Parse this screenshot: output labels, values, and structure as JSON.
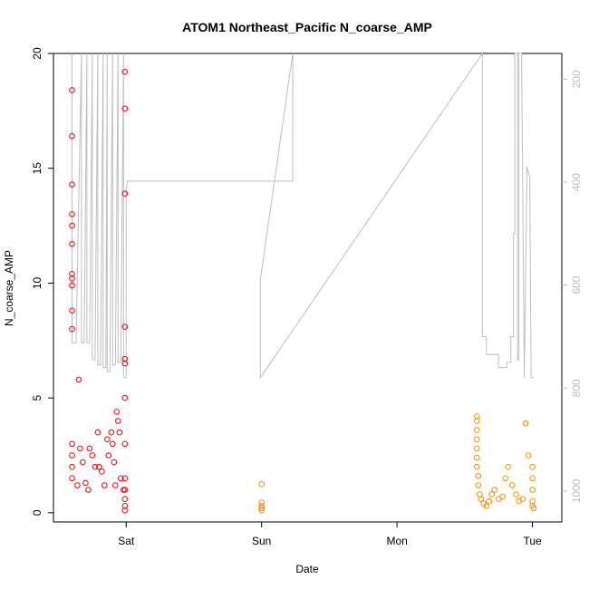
{
  "chart_data": {
    "type": "scatter",
    "title": "ATOM1 Northeast_Pacific N_coarse_AMP",
    "xlabel": "Date",
    "ylabel": "N_coarse_AMP",
    "x_ticks": [
      "Sat",
      "Sun",
      "Mon",
      "Tue"
    ],
    "x_range_days": [
      -0.45,
      3.13
    ],
    "ylim": [
      -0.4,
      20.0
    ],
    "y_ticks": [
      0,
      5,
      10,
      15,
      20
    ],
    "y2_ticks": [
      200,
      400,
      600,
      800,
      1000
    ],
    "y2lim": [
      1060,
      150
    ],
    "y2_inverted": true,
    "grid": false,
    "colors": {
      "series1": "#ff0000",
      "series2": "#ff8c00",
      "secondary_line": "#bebebe"
    },
    "series": [
      {
        "x": [
          -0.4,
          -0.4,
          -0.4,
          -0.4,
          -0.4,
          -0.4,
          -0.4,
          -0.4,
          -0.4,
          -0.4,
          -0.4,
          -0.4,
          -0.4,
          -0.4,
          -0.4,
          -0.36,
          -0.35,
          -0.34,
          -0.32,
          -0.3,
          -0.28,
          -0.27,
          -0.25,
          -0.23,
          -0.21,
          -0.2,
          -0.18,
          -0.16,
          -0.14,
          -0.13,
          -0.11,
          -0.1,
          -0.09,
          -0.08,
          -0.07,
          -0.06,
          -0.05,
          -0.04,
          -0.02,
          -0.01,
          -0.01,
          -0.01,
          -0.01,
          -0.01,
          -0.01,
          -0.01,
          -0.01,
          -0.01,
          -0.01,
          -0.01,
          -0.01,
          -0.01
        ],
        "y": [
          18.4,
          16.4,
          14.3,
          13.0,
          12.5,
          11.7,
          10.4,
          10.2,
          9.9,
          8.8,
          8.0,
          3.0,
          2.5,
          2.0,
          1.5,
          1.2,
          5.8,
          2.8,
          2.2,
          1.3,
          1.0,
          2.8,
          2.5,
          2.0,
          3.5,
          2.0,
          1.8,
          1.2,
          3.2,
          2.5,
          3.5,
          3.0,
          2.2,
          1.2,
          4.4,
          4.0,
          3.5,
          1.5,
          1.0,
          19.2,
          17.6,
          13.9,
          8.1,
          6.7,
          6.5,
          5.0,
          3.0,
          1.5,
          1.0,
          0.6,
          0.3,
          0.1
        ]
      },
      {
        "x": [
          1.0,
          1.0,
          1.0,
          1.0,
          1.0,
          2.59,
          2.59,
          2.59,
          2.59,
          2.59,
          2.59,
          2.59,
          2.6,
          2.6,
          2.61,
          2.62,
          2.64,
          2.66,
          2.68,
          2.7,
          2.72,
          2.75,
          2.78,
          2.8,
          2.82,
          2.85,
          2.88,
          2.9,
          2.93,
          2.95,
          2.97,
          3.0,
          3.0,
          3.0,
          3.0,
          3.0,
          3.01
        ],
        "y": [
          1.25,
          0.45,
          0.3,
          0.2,
          0.1,
          4.2,
          4.0,
          3.6,
          3.2,
          2.8,
          2.4,
          2.0,
          1.6,
          1.2,
          0.8,
          0.6,
          0.4,
          0.3,
          0.5,
          0.8,
          1.0,
          0.6,
          0.7,
          1.5,
          2.0,
          1.2,
          0.8,
          0.5,
          0.6,
          3.9,
          2.5,
          2.0,
          1.5,
          1.0,
          0.5,
          0.3,
          0.2
        ]
      }
    ],
    "secondary_line": {
      "x": [
        -0.4,
        -0.4,
        -0.37,
        -0.33,
        -0.33,
        -0.31,
        -0.29,
        -0.29,
        -0.27,
        -0.25,
        -0.25,
        -0.23,
        -0.21,
        -0.21,
        -0.19,
        -0.17,
        -0.17,
        -0.15,
        -0.14,
        -0.14,
        -0.12,
        -0.1,
        -0.1,
        -0.08,
        -0.06,
        -0.06,
        -0.04,
        -0.02,
        -0.02,
        0.0,
        0.0,
        0.01,
        0.01,
        0.02,
        1.23,
        1.23,
        0.99,
        0.99,
        2.63,
        2.63,
        2.66,
        2.66,
        2.75,
        2.75,
        2.81,
        2.81,
        2.84,
        2.84,
        2.86,
        2.86,
        2.87,
        2.87,
        2.89,
        2.89,
        2.9,
        2.9,
        2.92,
        2.94,
        2.94,
        2.96,
        2.96,
        2.98,
        2.99,
        3.01,
        3.01
      ],
      "y": [
        150,
        712,
        712,
        150,
        712,
        712,
        150,
        712,
        712,
        150,
        745,
        745,
        150,
        755,
        755,
        150,
        760,
        760,
        150,
        768,
        768,
        150,
        755,
        755,
        150,
        750,
        750,
        150,
        780,
        780,
        408,
        405,
        398,
        398,
        398,
        150,
        590,
        780,
        150,
        700,
        700,
        735,
        735,
        760,
        760,
        750,
        750,
        700,
        700,
        500,
        500,
        150,
        150,
        745,
        745,
        150,
        150,
        780,
        780,
        370,
        370,
        390,
        780,
        780,
        780
      ]
    }
  }
}
